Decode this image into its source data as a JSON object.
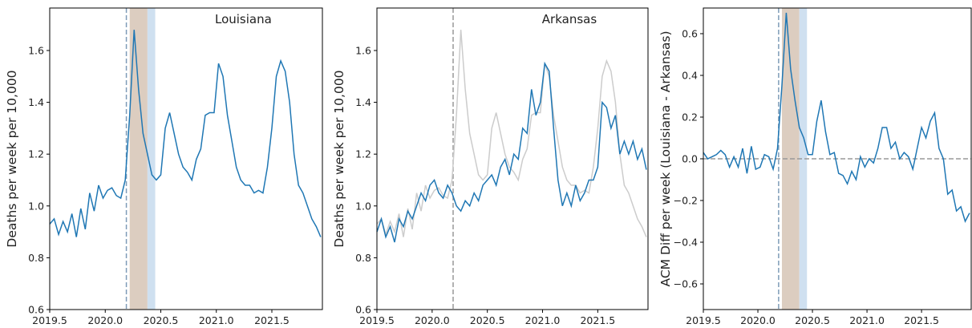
{
  "chart_data": [
    {
      "type": "line",
      "title": "Louisiana",
      "ylabel": "Deaths per week per 10,000",
      "x": [
        2019.5,
        2019.54,
        2019.58,
        2019.62,
        2019.66,
        2019.7,
        2019.74,
        2019.78,
        2019.82,
        2019.86,
        2019.9,
        2019.94,
        2019.98,
        2020.02,
        2020.06,
        2020.1,
        2020.14,
        2020.18,
        2020.22,
        2020.26,
        2020.3,
        2020.34,
        2020.38,
        2020.42,
        2020.46,
        2020.5,
        2020.54,
        2020.58,
        2020.62,
        2020.66,
        2020.7,
        2020.74,
        2020.78,
        2020.82,
        2020.86,
        2020.9,
        2020.94,
        2020.98,
        2021.02,
        2021.06,
        2021.1,
        2021.14,
        2021.18,
        2021.22,
        2021.26,
        2021.3,
        2021.34,
        2021.38,
        2021.42,
        2021.46,
        2021.5,
        2021.54,
        2021.58,
        2021.62,
        2021.66,
        2021.7,
        2021.74,
        2021.78,
        2021.82,
        2021.86,
        2021.9,
        2021.94
      ],
      "series": [
        {
          "color": "#1f77b4",
          "values": [
            0.93,
            0.95,
            0.89,
            0.94,
            0.9,
            0.97,
            0.88,
            0.99,
            0.91,
            1.05,
            0.98,
            1.08,
            1.03,
            1.06,
            1.07,
            1.04,
            1.03,
            1.1,
            1.35,
            1.68,
            1.45,
            1.28,
            1.2,
            1.12,
            1.1,
            1.12,
            1.3,
            1.36,
            1.28,
            1.2,
            1.15,
            1.13,
            1.1,
            1.18,
            1.22,
            1.35,
            1.36,
            1.36,
            1.55,
            1.5,
            1.35,
            1.25,
            1.15,
            1.1,
            1.08,
            1.08,
            1.05,
            1.06,
            1.05,
            1.15,
            1.3,
            1.5,
            1.56,
            1.52,
            1.4,
            1.2,
            1.08,
            1.05,
            1.0,
            0.95,
            0.92,
            0.88
          ]
        }
      ],
      "xlim": [
        2019.5,
        2021.955
      ],
      "xticks": [
        2019.5,
        {
          "value": 2020,
          "label": "2020.0"
        },
        2020.5,
        {
          "value": 2021,
          "label": "2021.0"
        },
        2021.5
      ],
      "ylim": [
        0.6,
        1.764
      ],
      "yticks": [
        0.6,
        0.8,
        {
          "value": 1,
          "label": "1.0"
        },
        1.2,
        1.4,
        1.6
      ],
      "vline": {
        "x": 2020.19,
        "color": "#7f9cb8"
      },
      "spans": [
        {
          "range": [
            2020.22,
            2020.38
          ],
          "color": "#dccdc0"
        },
        {
          "range": [
            2020.38,
            2020.45
          ],
          "color": "#cfe0f0"
        }
      ]
    },
    {
      "type": "line",
      "title": "Arkansas",
      "ylabel": "Deaths per week per 10,000",
      "x": [
        2019.5,
        2019.54,
        2019.58,
        2019.62,
        2019.66,
        2019.7,
        2019.74,
        2019.78,
        2019.82,
        2019.86,
        2019.9,
        2019.94,
        2019.98,
        2020.02,
        2020.06,
        2020.1,
        2020.14,
        2020.18,
        2020.22,
        2020.26,
        2020.3,
        2020.34,
        2020.38,
        2020.42,
        2020.46,
        2020.5,
        2020.54,
        2020.58,
        2020.62,
        2020.66,
        2020.7,
        2020.74,
        2020.78,
        2020.82,
        2020.86,
        2020.9,
        2020.94,
        2020.98,
        2021.02,
        2021.06,
        2021.1,
        2021.14,
        2021.18,
        2021.22,
        2021.26,
        2021.3,
        2021.34,
        2021.38,
        2021.42,
        2021.46,
        2021.5,
        2021.54,
        2021.58,
        2021.62,
        2021.66,
        2021.7,
        2021.74,
        2021.78,
        2021.82,
        2021.86,
        2021.9,
        2021.94
      ],
      "series": [
        {
          "color": "#cccccc",
          "values": [
            0.93,
            0.95,
            0.89,
            0.94,
            0.9,
            0.97,
            0.88,
            0.99,
            0.91,
            1.05,
            0.98,
            1.08,
            1.03,
            1.06,
            1.07,
            1.04,
            1.03,
            1.1,
            1.35,
            1.68,
            1.45,
            1.28,
            1.2,
            1.12,
            1.1,
            1.12,
            1.3,
            1.36,
            1.28,
            1.2,
            1.15,
            1.13,
            1.1,
            1.18,
            1.22,
            1.35,
            1.36,
            1.36,
            1.55,
            1.5,
            1.35,
            1.25,
            1.15,
            1.1,
            1.08,
            1.08,
            1.05,
            1.06,
            1.05,
            1.15,
            1.3,
            1.5,
            1.56,
            1.52,
            1.4,
            1.2,
            1.08,
            1.05,
            1.0,
            0.95,
            0.92,
            0.88
          ]
        },
        {
          "color": "#1f77b4",
          "values": [
            0.9,
            0.95,
            0.88,
            0.92,
            0.86,
            0.95,
            0.92,
            0.98,
            0.95,
            1.0,
            1.05,
            1.02,
            1.08,
            1.1,
            1.05,
            1.03,
            1.08,
            1.05,
            1.0,
            0.98,
            1.02,
            1.0,
            1.05,
            1.02,
            1.08,
            1.1,
            1.12,
            1.08,
            1.15,
            1.18,
            1.12,
            1.2,
            1.18,
            1.3,
            1.28,
            1.45,
            1.35,
            1.4,
            1.55,
            1.52,
            1.3,
            1.1,
            1.0,
            1.05,
            1.0,
            1.08,
            1.02,
            1.05,
            1.1,
            1.1,
            1.15,
            1.4,
            1.38,
            1.3,
            1.35,
            1.2,
            1.25,
            1.2,
            1.25,
            1.18,
            1.22,
            1.14
          ]
        }
      ],
      "xlim": [
        2019.5,
        2021.955
      ],
      "xticks": [
        2019.5,
        {
          "value": 2020,
          "label": "2020.0"
        },
        2020.5,
        {
          "value": 2021,
          "label": "2021.0"
        },
        2021.5
      ],
      "ylim": [
        0.6,
        1.764
      ],
      "yticks": [
        0.6,
        0.8,
        {
          "value": 1,
          "label": "1.0"
        },
        1.2,
        1.4,
        1.6
      ],
      "vline": {
        "x": 2020.19,
        "color": "#999999"
      }
    },
    {
      "type": "line",
      "ylabel": "ACM Diff per week (Louisiana - Arkansas)",
      "x": [
        2019.5,
        2019.54,
        2019.58,
        2019.62,
        2019.66,
        2019.7,
        2019.74,
        2019.78,
        2019.82,
        2019.86,
        2019.9,
        2019.94,
        2019.98,
        2020.02,
        2020.06,
        2020.1,
        2020.14,
        2020.18,
        2020.22,
        2020.26,
        2020.3,
        2020.34,
        2020.38,
        2020.42,
        2020.46,
        2020.5,
        2020.54,
        2020.58,
        2020.62,
        2020.66,
        2020.7,
        2020.74,
        2020.78,
        2020.82,
        2020.86,
        2020.9,
        2020.94,
        2020.98,
        2021.02,
        2021.06,
        2021.1,
        2021.14,
        2021.18,
        2021.22,
        2021.26,
        2021.3,
        2021.34,
        2021.38,
        2021.42,
        2021.46,
        2021.5,
        2021.54,
        2021.58,
        2021.62,
        2021.66,
        2021.7,
        2021.74,
        2021.78,
        2021.82,
        2021.86,
        2021.9,
        2021.94
      ],
      "series": [
        {
          "color": "#1f77b4",
          "values": [
            0.03,
            0.0,
            0.01,
            0.02,
            0.04,
            0.02,
            -0.04,
            0.01,
            -0.04,
            0.05,
            -0.07,
            0.06,
            -0.05,
            -0.04,
            0.02,
            0.01,
            -0.05,
            0.05,
            0.35,
            0.7,
            0.43,
            0.28,
            0.15,
            0.1,
            0.02,
            0.02,
            0.18,
            0.28,
            0.13,
            0.02,
            0.03,
            -0.07,
            -0.08,
            -0.12,
            -0.06,
            -0.1,
            0.01,
            -0.04,
            0.0,
            -0.02,
            0.05,
            0.15,
            0.15,
            0.05,
            0.08,
            0.0,
            0.03,
            0.01,
            -0.05,
            0.05,
            0.15,
            0.1,
            0.18,
            0.22,
            0.05,
            0.0,
            -0.17,
            -0.15,
            -0.25,
            -0.23,
            -0.3,
            -0.26
          ]
        }
      ],
      "xlim": [
        2019.5,
        2021.955
      ],
      "xticks": [
        2019.5,
        {
          "value": 2020,
          "label": "2020.0"
        },
        2020.5,
        {
          "value": 2021,
          "label": "2021.0"
        },
        2021.5
      ],
      "ylim": [
        -0.723,
        0.723
      ],
      "yticks": [
        {
          "value": -0.6,
          "label": "−0.6"
        },
        {
          "value": -0.4,
          "label": "−0.4"
        },
        {
          "value": -0.2,
          "label": "−0.2"
        },
        {
          "value": 0,
          "label": "0.0"
        },
        0.2,
        0.4,
        0.6
      ],
      "hline": {
        "y": 0,
        "color": "#999999"
      },
      "vline": {
        "x": 2020.19,
        "color": "#7f9cb8"
      },
      "spans": [
        {
          "range": [
            2020.22,
            2020.38
          ],
          "color": "#dccdc0"
        },
        {
          "range": [
            2020.38,
            2020.45
          ],
          "color": "#cfe0f0"
        }
      ]
    }
  ]
}
